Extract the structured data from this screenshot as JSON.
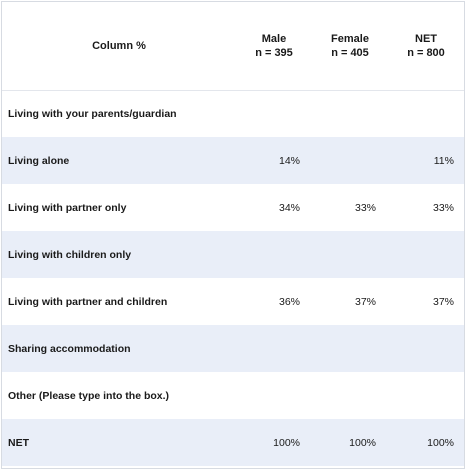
{
  "table": {
    "header": {
      "label_col": "Column %",
      "columns": [
        {
          "title": "Male",
          "base": "n = 395"
        },
        {
          "title": "Female",
          "base": "n = 405"
        },
        {
          "title": "NET",
          "base": "n = 800"
        }
      ]
    },
    "rows": [
      {
        "label": "Living with your parents/guardian",
        "male": "",
        "female": "",
        "net": ""
      },
      {
        "label": "Living alone",
        "male": "14%",
        "female": "",
        "net": "11%"
      },
      {
        "label": "Living with partner only",
        "male": "34%",
        "female": "33%",
        "net": "33%"
      },
      {
        "label": "Living with children only",
        "male": "",
        "female": "",
        "net": ""
      },
      {
        "label": "Living with partner and children",
        "male": "36%",
        "female": "37%",
        "net": "37%"
      },
      {
        "label": "Sharing accommodation",
        "male": "",
        "female": "",
        "net": ""
      },
      {
        "label": "Other (Please type into the box.)",
        "male": "",
        "female": "",
        "net": ""
      },
      {
        "label": "NET",
        "male": "100%",
        "female": "100%",
        "net": "100%"
      }
    ]
  }
}
